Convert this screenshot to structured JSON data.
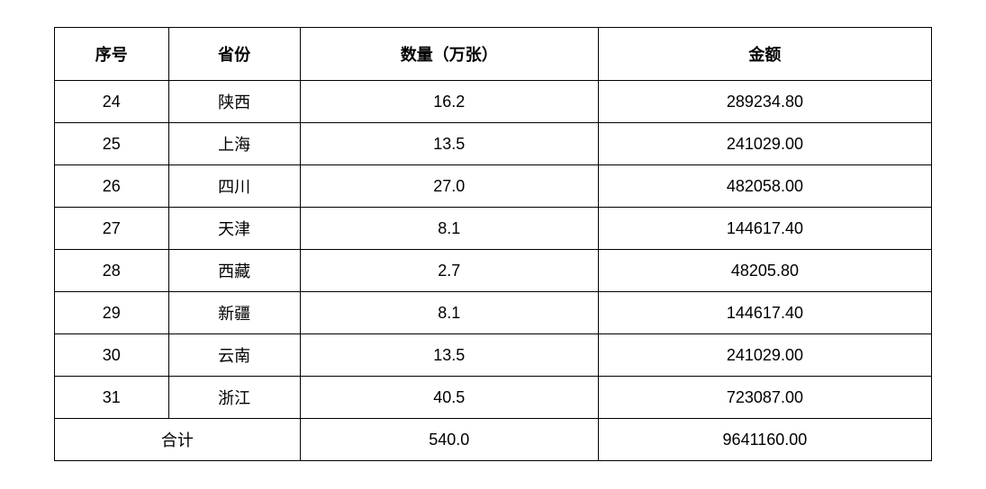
{
  "table": {
    "columns": [
      "序号",
      "省份",
      "数量（万张）",
      "金额"
    ],
    "rows": [
      {
        "index": "24",
        "province": "陕西",
        "quantity": "16.2",
        "amount": "289234.80"
      },
      {
        "index": "25",
        "province": "上海",
        "quantity": "13.5",
        "amount": "241029.00"
      },
      {
        "index": "26",
        "province": "四川",
        "quantity": "27.0",
        "amount": "482058.00"
      },
      {
        "index": "27",
        "province": "天津",
        "quantity": "8.1",
        "amount": "144617.40"
      },
      {
        "index": "28",
        "province": "西藏",
        "quantity": "2.7",
        "amount": "48205.80"
      },
      {
        "index": "29",
        "province": "新疆",
        "quantity": "8.1",
        "amount": "144617.40"
      },
      {
        "index": "30",
        "province": "云南",
        "quantity": "13.5",
        "amount": "241029.00"
      },
      {
        "index": "31",
        "province": "浙江",
        "quantity": "40.5",
        "amount": "723087.00"
      }
    ],
    "total": {
      "label": "合计",
      "quantity": "540.0",
      "amount": "9641160.00"
    },
    "styling": {
      "border_color": "#000000",
      "background_color": "#ffffff",
      "text_color": "#000000",
      "header_fontsize": 18,
      "cell_fontsize": 18,
      "header_fontweight": "bold",
      "cell_fontweight": "normal",
      "column_widths_pct": [
        13,
        15,
        34,
        38
      ],
      "column_align": [
        "center",
        "center",
        "center",
        "center"
      ]
    }
  }
}
